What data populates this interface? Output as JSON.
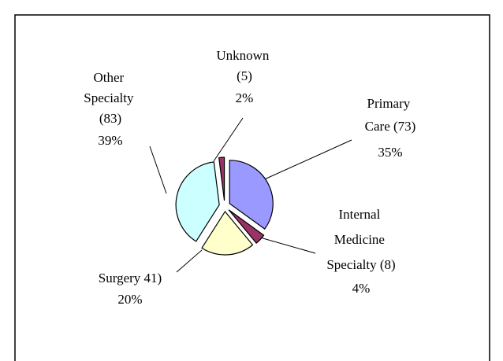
{
  "chart_data": {
    "type": "pie",
    "categories": [
      "Primary Care (73)",
      "Internal Medicine Specialty (8)",
      "Surgery 41)",
      "Other Specialty (83)",
      "Unknown (5)"
    ],
    "values": [
      35,
      4,
      20,
      39,
      2
    ],
    "value_labels": [
      "35%",
      "4%",
      "20%",
      "39%",
      "2%"
    ],
    "colors": [
      "#9999ff",
      "#993366",
      "#ffffcc",
      "#ccffff",
      "#993366"
    ]
  }
}
